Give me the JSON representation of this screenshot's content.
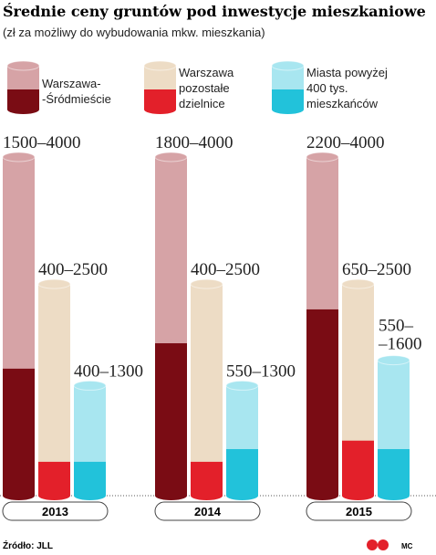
{
  "chart_data": {
    "type": "range-bar",
    "title": "Średnie ceny gruntów pod inwestycje mieszkaniowe",
    "subtitle": "(zł za możliwy do wybudowania mkw. mieszkania)",
    "categories": [
      "2013",
      "2014",
      "2015"
    ],
    "series": [
      {
        "name": "Warszawa-\n-Śródmieście",
        "color": "#7a0c14",
        "light_color": "#d6a3a6",
        "low": [
          1500,
          1800,
          2200
        ],
        "high": [
          4000,
          4000,
          4000
        ],
        "value_labels": [
          "1500–4000",
          "1800–4000",
          "2200–4000"
        ]
      },
      {
        "name": "Warszawa\npozostałe\ndzielnice",
        "color": "#e3202a",
        "light_color": "#eddcc5",
        "low": [
          400,
          400,
          650
        ],
        "high": [
          2500,
          2500,
          2500
        ],
        "value_labels": [
          "400–2500",
          "400–2500",
          "650–2500"
        ]
      },
      {
        "name": "Miasta powyżej\n400 tys.\nmieszkańców",
        "color": "#22c2da",
        "light_color": "#a8e6f0",
        "low": [
          400,
          550,
          550
        ],
        "high": [
          1300,
          1300,
          1600
        ],
        "value_labels": [
          "400–1300",
          "550–1300",
          "550–\n–1600"
        ]
      }
    ],
    "source": "Źródło: JLL",
    "credit": "MC"
  }
}
